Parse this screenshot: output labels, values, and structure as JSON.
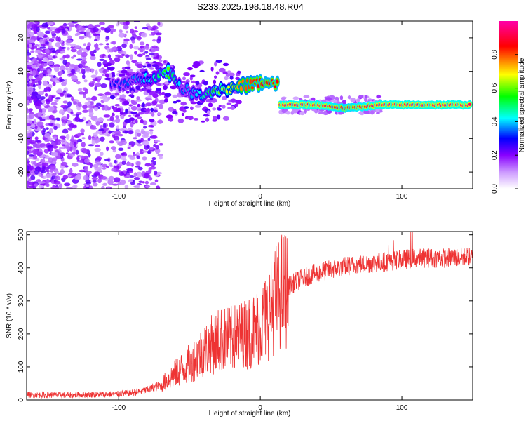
{
  "title": "S233.2025.198.18.48.R04",
  "chart_data": [
    {
      "type": "heatmap",
      "xlabel": "Height of straight line (km)",
      "ylabel": "Frequency (Hz)",
      "xlim": [
        -165,
        150
      ],
      "ylim": [
        -25,
        25
      ],
      "xticks": [
        -100,
        0,
        100
      ],
      "yticks": [
        -20,
        -10,
        0,
        10,
        20
      ],
      "colorbar": {
        "label": "Normalized spectral amplitude",
        "range": [
          0,
          1
        ],
        "ticks": [
          "0.0",
          "0.2",
          "0.4",
          "0.6",
          "0.8"
        ],
        "colors": [
          "#ffffff",
          "#cc99ff",
          "#8800ff",
          "#0000ff",
          "#00ffff",
          "#00ff00",
          "#ffff00",
          "#ff0000",
          "#ff00aa"
        ]
      },
      "ridge": [
        {
          "x": -105,
          "f": 6,
          "amp": 0.3
        },
        {
          "x": -90,
          "f": 7,
          "amp": 0.35
        },
        {
          "x": -75,
          "f": 8.5,
          "amp": 0.45
        },
        {
          "x": -65,
          "f": 10,
          "amp": 0.6
        },
        {
          "x": -55,
          "f": 5,
          "amp": 0.35
        },
        {
          "x": -45,
          "f": 3,
          "amp": 0.4
        },
        {
          "x": -30,
          "f": 4.5,
          "amp": 0.6
        },
        {
          "x": -20,
          "f": 5,
          "amp": 0.7
        },
        {
          "x": -10,
          "f": 6,
          "amp": 0.8
        },
        {
          "x": 0,
          "f": 6.5,
          "amp": 0.85
        },
        {
          "x": 12,
          "f": 6,
          "amp": 0.85
        },
        {
          "x": 14,
          "f": 0,
          "amp": 0.95
        },
        {
          "x": 40,
          "f": 0,
          "amp": 0.95
        },
        {
          "x": 60,
          "f": -1,
          "amp": 0.9
        },
        {
          "x": 85,
          "f": 0,
          "amp": 0.95
        },
        {
          "x": 120,
          "f": 0,
          "amp": 0.95
        },
        {
          "x": 148,
          "f": 0,
          "amp": 0.95
        }
      ]
    },
    {
      "type": "line",
      "xlabel": "Height of straight line (km)",
      "ylabel": "SNR (10 * v/v)",
      "xlim": [
        -165,
        150
      ],
      "ylim": [
        0,
        510
      ],
      "xticks": [
        -100,
        0,
        100
      ],
      "yticks": [
        0,
        100,
        200,
        300,
        400,
        500
      ],
      "color": "#ee3333",
      "series": [
        {
          "x": [
            -165,
            -140,
            -120,
            -100,
            -90,
            -80,
            -70,
            -60,
            -50,
            -40,
            -30,
            -20,
            -10,
            0,
            5,
            10,
            15,
            20,
            30,
            40,
            50,
            60,
            70,
            80,
            90,
            100,
            110,
            120,
            130,
            140,
            150
          ],
          "values": [
            15,
            15,
            16,
            18,
            22,
            30,
            45,
            80,
            110,
            150,
            180,
            185,
            200,
            225,
            255,
            300,
            330,
            345,
            370,
            385,
            395,
            405,
            410,
            415,
            420,
            425,
            430,
            430,
            430,
            432,
            432
          ]
        }
      ]
    }
  ]
}
